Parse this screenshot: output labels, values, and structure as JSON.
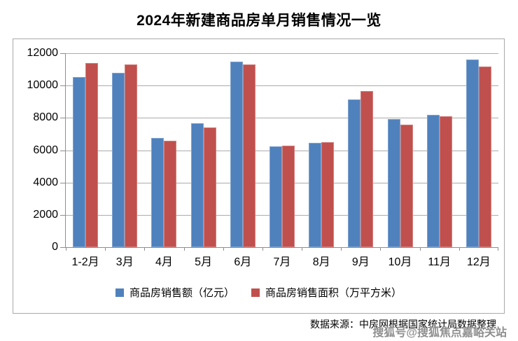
{
  "title": "2024年新建商品房单月销售情况一览",
  "chart_data": {
    "type": "bar",
    "title": "2024年新建商品房单月销售情况一览",
    "xlabel": "",
    "ylabel": "",
    "categories": [
      "1-2月",
      "3月",
      "4月",
      "5月",
      "6月",
      "7月",
      "8月",
      "9月",
      "10月",
      "11月",
      "12月"
    ],
    "series": [
      {
        "name": "商品房销售额（亿元）",
        "color": "#4F81BD",
        "values": [
          10550,
          10800,
          6750,
          7650,
          11500,
          6250,
          6450,
          9150,
          7950,
          8200,
          11600
        ]
      },
      {
        "name": "商品房销售面积（万平方米）",
        "color": "#C0504D",
        "values": [
          11400,
          11300,
          6600,
          7400,
          11300,
          6300,
          6500,
          9650,
          7600,
          8100,
          11200
        ]
      }
    ],
    "ylim": [
      0,
      12000
    ],
    "yticks": [
      0,
      2000,
      4000,
      6000,
      8000,
      10000,
      12000
    ],
    "grid": true,
    "legend_position": "bottom"
  },
  "footer": {
    "source": "数据来源：中房网根据国家统计局数据整理",
    "watermark": "搜狐号@搜狐焦点嘉峪关站"
  },
  "colors": {
    "series_sales_value": "#4F81BD",
    "series_sales_area": "#C0504D",
    "gridline": "#ABABAB",
    "axis": "#8E8E8E",
    "frame_border": "#A9A9A9",
    "watermark": "#8F8F8F"
  }
}
